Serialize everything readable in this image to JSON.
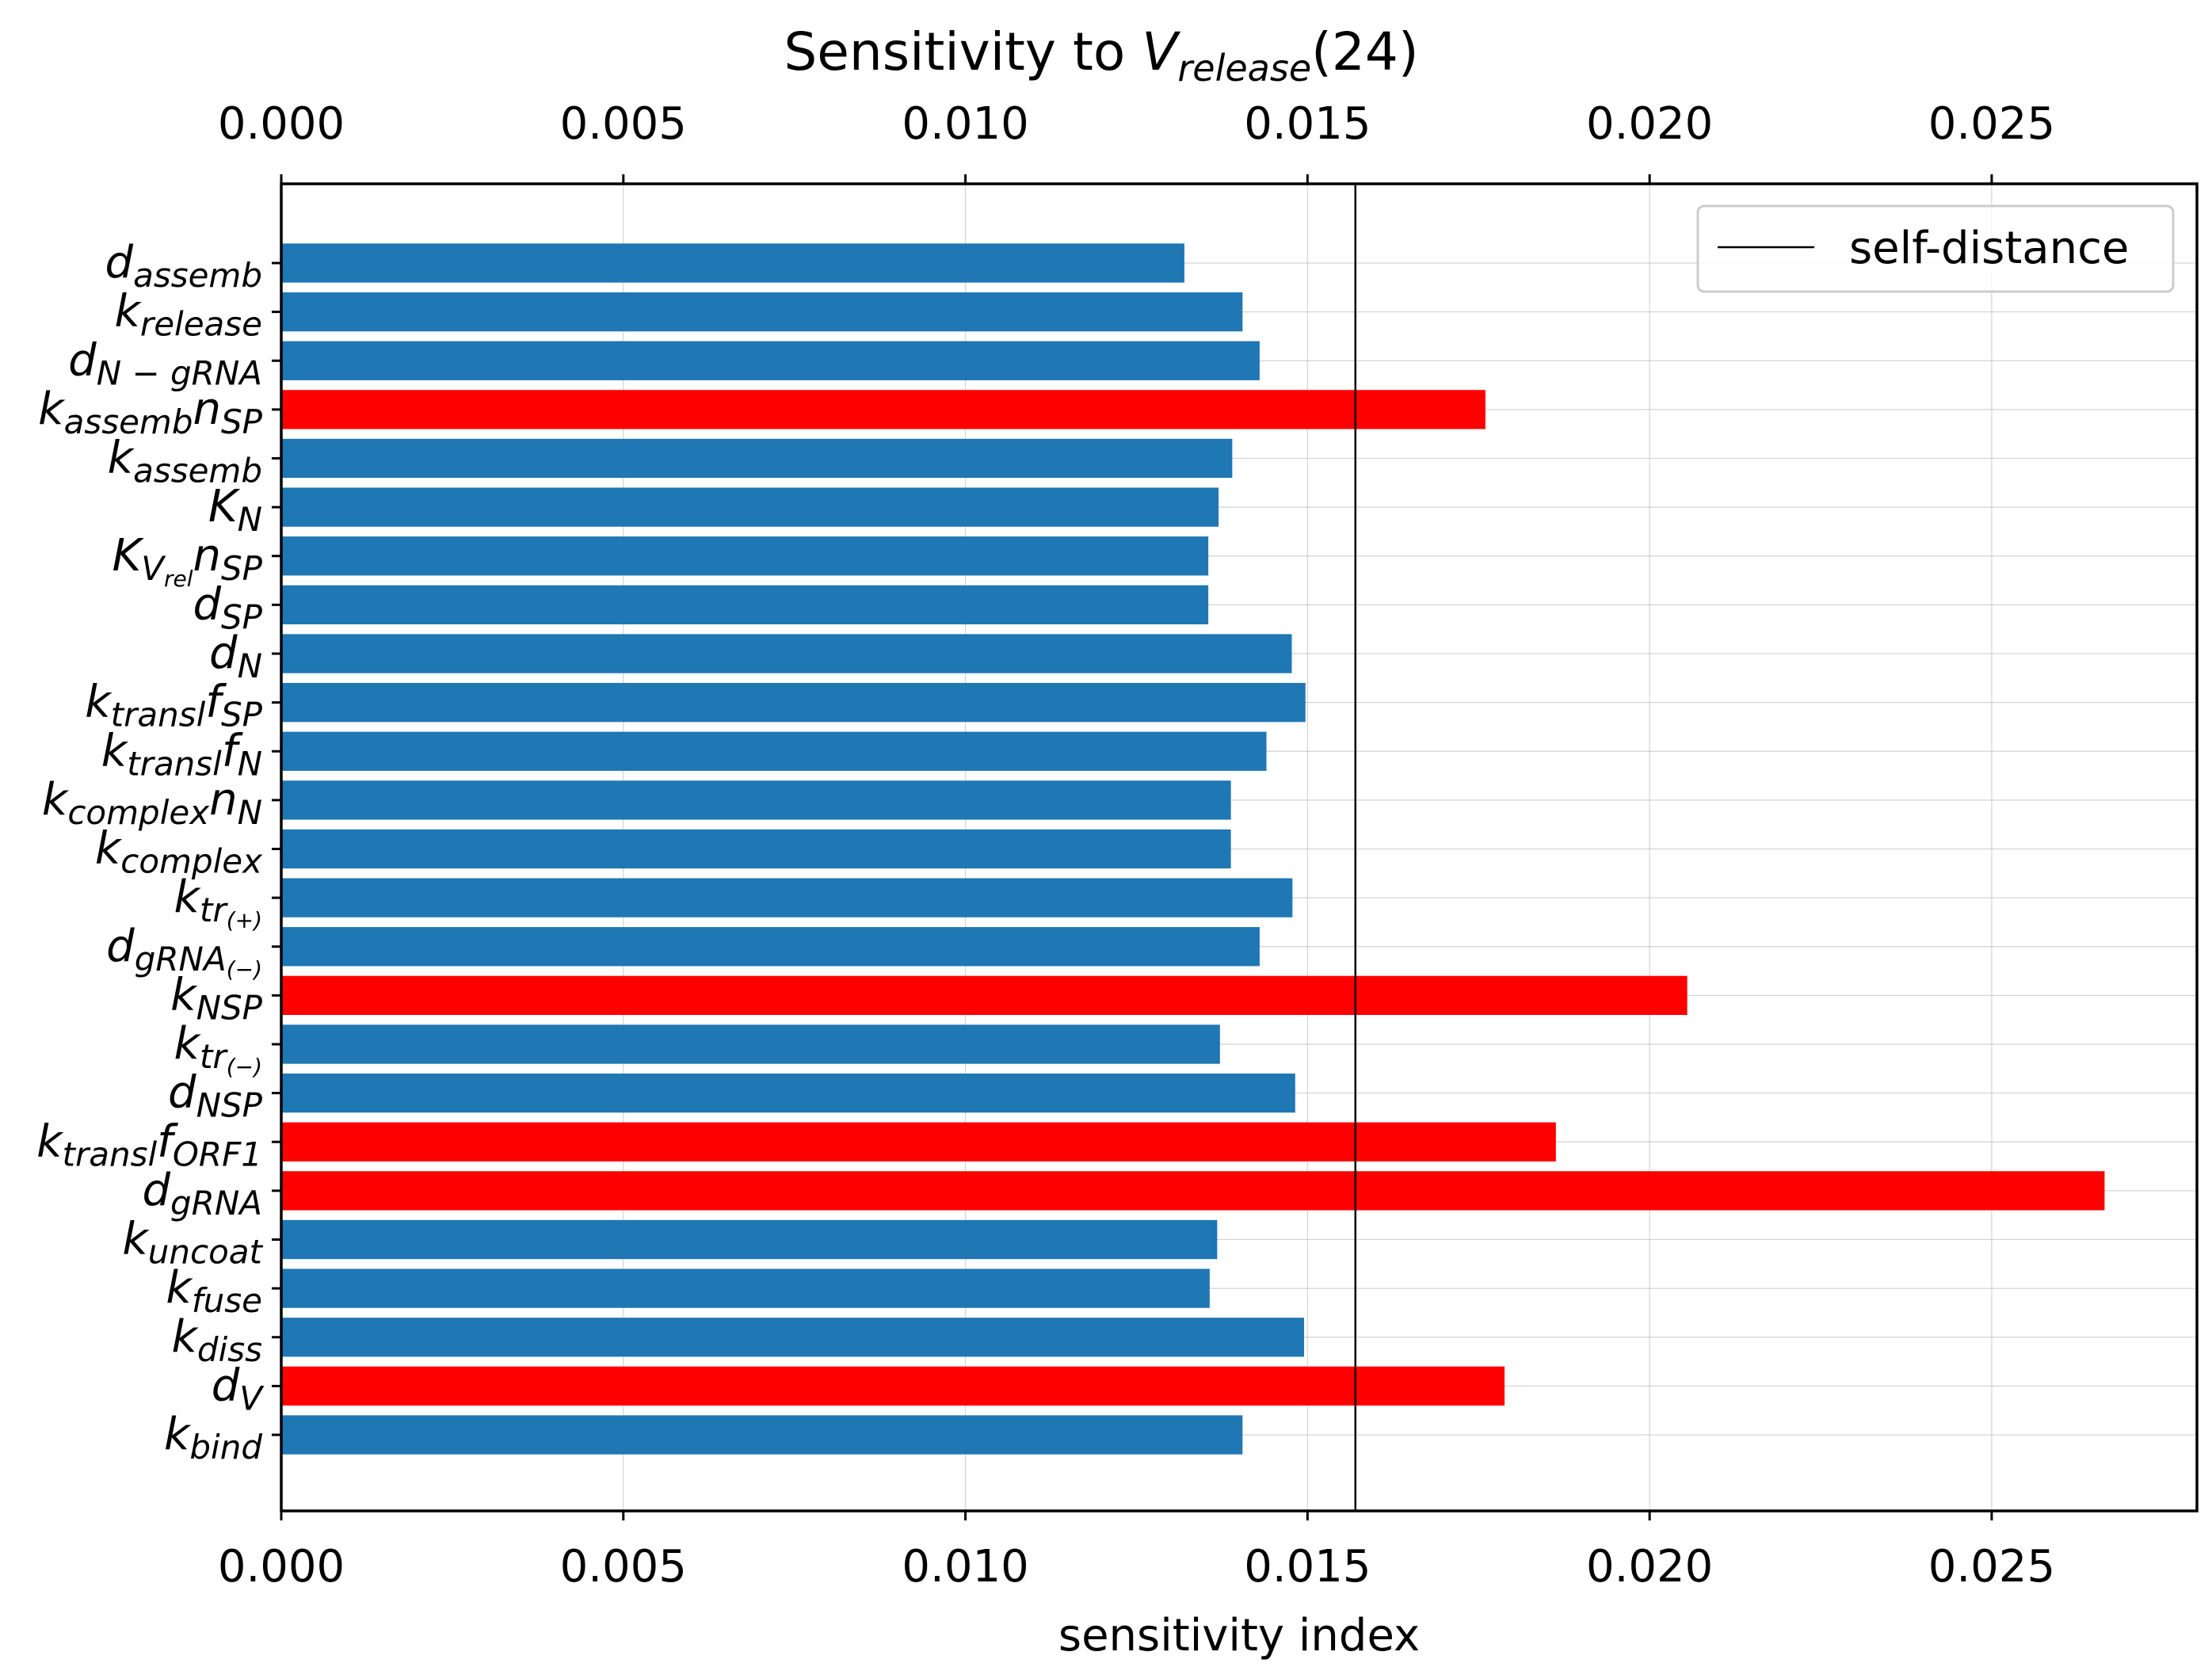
{
  "chart_data": {
    "type": "bar",
    "orientation": "horizontal",
    "title": {
      "prefix": "Sensitivity to ",
      "var": "V",
      "sub": "release",
      "suffix": "(24)"
    },
    "xlabel": "sensitivity index",
    "xlim": [
      0,
      0.028
    ],
    "xticks": [
      "0.000",
      "0.005",
      "0.010",
      "0.015",
      "0.020",
      "0.025"
    ],
    "xtick_values": [
      0,
      0.005,
      0.01,
      0.015,
      0.02,
      0.025
    ],
    "grid": true,
    "reference_line": {
      "label": "self-distance",
      "value": 0.0157
    },
    "legend_position": "top-right",
    "colors": {
      "normal": "#1f77b4",
      "highlight": "#ff0000"
    },
    "categories": [
      {
        "label": "d_assemb",
        "parts": [
          [
            "d",
            "assemb"
          ]
        ],
        "value": 0.0132,
        "highlight": false
      },
      {
        "label": "k_release",
        "parts": [
          [
            "k",
            "release"
          ]
        ],
        "value": 0.01405,
        "highlight": false
      },
      {
        "label": "d_N-gRNA",
        "parts": [
          [
            "d",
            "N − gRNA"
          ]
        ],
        "value": 0.0143,
        "highlight": false
      },
      {
        "label": "k_assemb n_SP",
        "parts": [
          [
            "k",
            "assemb"
          ],
          [
            "n",
            "SP"
          ]
        ],
        "value": 0.0176,
        "highlight": true
      },
      {
        "label": "k_assemb",
        "parts": [
          [
            "k",
            "assemb"
          ]
        ],
        "value": 0.0139,
        "highlight": false
      },
      {
        "label": "K_N",
        "parts": [
          [
            "K",
            "N"
          ]
        ],
        "value": 0.0137,
        "highlight": false
      },
      {
        "label": "K_Vrel n_SP",
        "parts": [
          [
            "K",
            "V",
            "rel"
          ],
          [
            "n",
            "SP"
          ]
        ],
        "value": 0.01355,
        "highlight": false
      },
      {
        "label": "d_SP",
        "parts": [
          [
            "d",
            "SP"
          ]
        ],
        "value": 0.01355,
        "highlight": false
      },
      {
        "label": "d_N",
        "parts": [
          [
            "d",
            "N"
          ]
        ],
        "value": 0.01477,
        "highlight": false
      },
      {
        "label": "k_transl f_SP",
        "parts": [
          [
            "k",
            "transl"
          ],
          [
            "f",
            "SP"
          ]
        ],
        "value": 0.01497,
        "highlight": false
      },
      {
        "label": "k_transl f_N",
        "parts": [
          [
            "k",
            "transl"
          ],
          [
            "f",
            "N"
          ]
        ],
        "value": 0.0144,
        "highlight": false
      },
      {
        "label": "k_complex n_N",
        "parts": [
          [
            "k",
            "complex"
          ],
          [
            "n",
            "N"
          ]
        ],
        "value": 0.01388,
        "highlight": false
      },
      {
        "label": "k_complex",
        "parts": [
          [
            "k",
            "complex"
          ]
        ],
        "value": 0.01388,
        "highlight": false
      },
      {
        "label": "k_tr(+)",
        "parts": [
          [
            "k",
            "tr",
            "(+)"
          ]
        ],
        "value": 0.01478,
        "highlight": false
      },
      {
        "label": "d_gRNA(-)",
        "parts": [
          [
            "d",
            "gRNA",
            "(−)"
          ]
        ],
        "value": 0.0143,
        "highlight": false
      },
      {
        "label": "k_NSP",
        "parts": [
          [
            "k",
            "NSP"
          ]
        ],
        "value": 0.02055,
        "highlight": true
      },
      {
        "label": "k_tr(-)",
        "parts": [
          [
            "k",
            "tr",
            "(−)"
          ]
        ],
        "value": 0.01372,
        "highlight": false
      },
      {
        "label": "d_NSP",
        "parts": [
          [
            "d",
            "NSP"
          ]
        ],
        "value": 0.01482,
        "highlight": false
      },
      {
        "label": "k_transl f_ORF1",
        "parts": [
          [
            "k",
            "transl"
          ],
          [
            "f",
            "ORF1"
          ]
        ],
        "value": 0.01863,
        "highlight": true
      },
      {
        "label": "d_gRNA",
        "parts": [
          [
            "d",
            "gRNA"
          ]
        ],
        "value": 0.02665,
        "highlight": true
      },
      {
        "label": "k_uncoat",
        "parts": [
          [
            "k",
            "uncoat"
          ]
        ],
        "value": 0.01368,
        "highlight": false
      },
      {
        "label": "k_fuse",
        "parts": [
          [
            "k",
            "fuse"
          ]
        ],
        "value": 0.01357,
        "highlight": false
      },
      {
        "label": "k_diss",
        "parts": [
          [
            "k",
            "diss"
          ]
        ],
        "value": 0.01495,
        "highlight": false
      },
      {
        "label": "d_V",
        "parts": [
          [
            "d",
            "V"
          ]
        ],
        "value": 0.01788,
        "highlight": true
      },
      {
        "label": "k_bind",
        "parts": [
          [
            "k",
            "bind"
          ]
        ],
        "value": 0.01405,
        "highlight": false
      }
    ]
  }
}
